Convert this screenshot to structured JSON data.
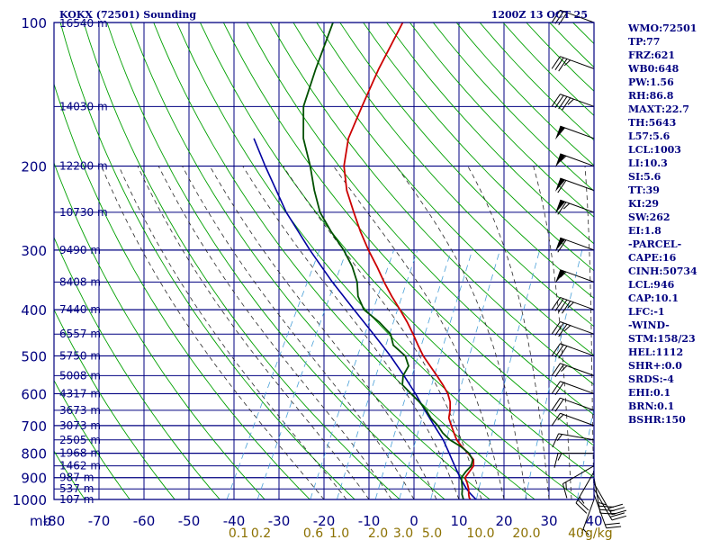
{
  "header": {
    "station": "KOKX (72501) Sounding",
    "time": "1200Z 13 OCT 25"
  },
  "chart_data": {
    "type": "skew-t",
    "title": "KOKX (72501) Sounding",
    "valid_time": "1200Z 13 OCT 25",
    "pressure_unit": "mb",
    "pressure_levels": [
      100,
      200,
      300,
      400,
      500,
      600,
      700,
      800,
      900,
      1000
    ],
    "pressure_labels": [
      "100",
      "200",
      "300",
      "400",
      "500",
      "600",
      "700",
      "800",
      "900",
      "1000"
    ],
    "pressure_unit_label": "mb",
    "temperature_ticks": [
      -80,
      -70,
      -60,
      -50,
      -40,
      -30,
      -20,
      -10,
      0,
      10,
      20,
      30,
      40
    ],
    "temperature_labels": [
      "-80",
      "-70",
      "-60",
      "-50",
      "-40",
      "-30",
      "-20",
      "-10",
      "0",
      "10",
      "20",
      "30",
      "40"
    ],
    "height_levels": [
      {
        "p": 107,
        "label": "16540 m"
      },
      {
        "p": 150,
        "label": "14030 m"
      },
      {
        "p": 200,
        "label": "12200 m"
      },
      {
        "p": 250,
        "label": "10730 m"
      },
      {
        "p": 300,
        "label": "9490 m"
      },
      {
        "p": 350,
        "label": "8408 m"
      },
      {
        "p": 400,
        "label": "7440 m"
      },
      {
        "p": 450,
        "label": "6557 m"
      },
      {
        "p": 500,
        "label": "5750 m"
      },
      {
        "p": 550,
        "label": "5008 m"
      },
      {
        "p": 600,
        "label": "4317 m"
      },
      {
        "p": 650,
        "label": "3673 m"
      },
      {
        "p": 700,
        "label": "3073 m"
      },
      {
        "p": 750,
        "label": "2505 m"
      },
      {
        "p": 800,
        "label": "1968 m"
      },
      {
        "p": 850,
        "label": "1462 m"
      },
      {
        "p": 900,
        "label": "987 m"
      },
      {
        "p": 950,
        "label": "537 m"
      },
      {
        "p": 1000,
        "label": "107 m"
      }
    ],
    "mixing_ratio_labels": [
      {
        "w": 0.1,
        "label": "0.1"
      },
      {
        "w": 0.2,
        "label": "0.2"
      },
      {
        "w": 0.6,
        "label": "0.6"
      },
      {
        "w": 1.0,
        "label": "1.0"
      },
      {
        "w": 2.0,
        "label": "2.0"
      },
      {
        "w": 3.0,
        "label": "3.0"
      },
      {
        "w": 5.0,
        "label": "5.0"
      },
      {
        "w": 10.0,
        "label": "10.0"
      },
      {
        "w": 20.0,
        "label": "20.0"
      },
      {
        "w": 40.0,
        "label": "40"
      }
    ],
    "mixing_ratio_unit": "g/kg",
    "temperature_profile": [
      {
        "p": 1000,
        "t": 12.5
      },
      {
        "p": 990,
        "t": 12.0
      },
      {
        "p": 975,
        "t": 11.5
      },
      {
        "p": 950,
        "t": 10.8
      },
      {
        "p": 925,
        "t": 9.8
      },
      {
        "p": 900,
        "t": 8.6
      },
      {
        "p": 875,
        "t": 8.8
      },
      {
        "p": 850,
        "t": 9.0
      },
      {
        "p": 825,
        "t": 8.2
      },
      {
        "p": 800,
        "t": 6.2
      },
      {
        "p": 775,
        "t": 4.0
      },
      {
        "p": 750,
        "t": 2.0
      },
      {
        "p": 725,
        "t": 0.5
      },
      {
        "p": 700,
        "t": -1.0
      },
      {
        "p": 675,
        "t": -2.5
      },
      {
        "p": 650,
        "t": -3.2
      },
      {
        "p": 625,
        "t": -4.2
      },
      {
        "p": 600,
        "t": -5.8
      },
      {
        "p": 575,
        "t": -8.0
      },
      {
        "p": 550,
        "t": -10.5
      },
      {
        "p": 525,
        "t": -13.2
      },
      {
        "p": 500,
        "t": -16.0
      },
      {
        "p": 475,
        "t": -18.5
      },
      {
        "p": 450,
        "t": -21.0
      },
      {
        "p": 425,
        "t": -23.8
      },
      {
        "p": 400,
        "t": -27.0
      },
      {
        "p": 375,
        "t": -30.5
      },
      {
        "p": 350,
        "t": -34.0
      },
      {
        "p": 325,
        "t": -37.5
      },
      {
        "p": 300,
        "t": -41.5
      },
      {
        "p": 275,
        "t": -45.5
      },
      {
        "p": 250,
        "t": -49.5
      },
      {
        "p": 225,
        "t": -53.8
      },
      {
        "p": 200,
        "t": -57.5
      },
      {
        "p": 175,
        "t": -60.0
      },
      {
        "p": 150,
        "t": -61.0
      },
      {
        "p": 125,
        "t": -62.0
      },
      {
        "p": 100,
        "t": -62.5
      }
    ],
    "dewpoint_profile": [
      {
        "p": 1000,
        "t": 11.0
      },
      {
        "p": 990,
        "t": 10.6
      },
      {
        "p": 975,
        "t": 10.0
      },
      {
        "p": 950,
        "t": 9.4
      },
      {
        "p": 925,
        "t": 8.6
      },
      {
        "p": 900,
        "t": 7.8
      },
      {
        "p": 875,
        "t": 8.0
      },
      {
        "p": 850,
        "t": 8.5
      },
      {
        "p": 825,
        "t": 8.0
      },
      {
        "p": 800,
        "t": 6.4
      },
      {
        "p": 775,
        "t": 3.8
      },
      {
        "p": 750,
        "t": 0.5
      },
      {
        "p": 725,
        "t": -2.0
      },
      {
        "p": 700,
        "t": -4.0
      },
      {
        "p": 675,
        "t": -6.5
      },
      {
        "p": 650,
        "t": -8.5
      },
      {
        "p": 625,
        "t": -11.0
      },
      {
        "p": 600,
        "t": -14.0
      },
      {
        "p": 575,
        "t": -17.0
      },
      {
        "p": 550,
        "t": -18.0
      },
      {
        "p": 525,
        "t": -18.0
      },
      {
        "p": 500,
        "t": -20.0
      },
      {
        "p": 475,
        "t": -24.0
      },
      {
        "p": 450,
        "t": -26.0
      },
      {
        "p": 425,
        "t": -30.0
      },
      {
        "p": 400,
        "t": -35.0
      },
      {
        "p": 375,
        "t": -38.0
      },
      {
        "p": 350,
        "t": -40.0
      },
      {
        "p": 325,
        "t": -43.0
      },
      {
        "p": 300,
        "t": -47.0
      },
      {
        "p": 275,
        "t": -52.0
      },
      {
        "p": 250,
        "t": -57.0
      },
      {
        "p": 225,
        "t": -61.0
      },
      {
        "p": 200,
        "t": -65.0
      },
      {
        "p": 175,
        "t": -70.0
      },
      {
        "p": 150,
        "t": -74.0
      },
      {
        "p": 125,
        "t": -76.0
      },
      {
        "p": 100,
        "t": -78.0
      }
    ],
    "parcel_profile": [
      {
        "p": 1000,
        "t": 13.8
      },
      {
        "p": 975,
        "t": 12.0
      },
      {
        "p": 946,
        "t": 10.1
      },
      {
        "p": 900,
        "t": 7.5
      },
      {
        "p": 850,
        "t": 4.8
      },
      {
        "p": 800,
        "t": 2.0
      },
      {
        "p": 750,
        "t": -1.0
      },
      {
        "p": 700,
        "t": -4.8
      },
      {
        "p": 650,
        "t": -8.8
      },
      {
        "p": 600,
        "t": -13.0
      },
      {
        "p": 550,
        "t": -17.8
      },
      {
        "p": 500,
        "t": -23.3
      },
      {
        "p": 450,
        "t": -29.8
      },
      {
        "p": 400,
        "t": -37.2
      },
      {
        "p": 350,
        "t": -45.5
      },
      {
        "p": 300,
        "t": -54.5
      },
      {
        "p": 250,
        "t": -64.5
      },
      {
        "p": 200,
        "t": -75.0
      },
      {
        "p": 175,
        "t": -81.0
      }
    ],
    "wind_profile": [
      {
        "p": 1000,
        "dir": 200,
        "spd": 5
      },
      {
        "p": 975,
        "dir": 160,
        "spd": 20
      },
      {
        "p": 950,
        "dir": 150,
        "spd": 25
      },
      {
        "p": 925,
        "dir": 150,
        "spd": 30
      },
      {
        "p": 900,
        "dir": 170,
        "spd": 35
      },
      {
        "p": 875,
        "dir": 210,
        "spd": 25
      },
      {
        "p": 850,
        "dir": 240,
        "spd": 15
      },
      {
        "p": 800,
        "dir": 270,
        "spd": 15
      },
      {
        "p": 750,
        "dir": 280,
        "spd": 15
      },
      {
        "p": 700,
        "dir": 290,
        "spd": 15
      },
      {
        "p": 650,
        "dir": 290,
        "spd": 20
      },
      {
        "p": 600,
        "dir": 290,
        "spd": 20
      },
      {
        "p": 550,
        "dir": 290,
        "spd": 25
      },
      {
        "p": 500,
        "dir": 290,
        "spd": 30
      },
      {
        "p": 450,
        "dir": 290,
        "spd": 35
      },
      {
        "p": 400,
        "dir": 290,
        "spd": 45
      },
      {
        "p": 350,
        "dir": 290,
        "spd": 55
      },
      {
        "p": 300,
        "dir": 290,
        "spd": 60
      },
      {
        "p": 250,
        "dir": 290,
        "spd": 65
      },
      {
        "p": 225,
        "dir": 290,
        "spd": 60
      },
      {
        "p": 200,
        "dir": 290,
        "spd": 55
      },
      {
        "p": 175,
        "dir": 290,
        "spd": 50
      },
      {
        "p": 150,
        "dir": 290,
        "spd": 45
      },
      {
        "p": 125,
        "dir": 290,
        "spd": 35
      },
      {
        "p": 100,
        "dir": 290,
        "spd": 30
      }
    ],
    "indices": [
      "WMO:72501",
      "TP:77",
      "FRZ:621",
      "WB0:648",
      "PW:1.56",
      "RH:86.8",
      "MAXT:22.7",
      "TH:5643",
      "L57:5.6",
      "LCL:1003",
      "LI:10.3",
      "SI:5.6",
      "TT:39",
      "KI:29",
      "SW:262",
      "EI:1.8",
      "-PARCEL-",
      "CAPE:16",
      "CINH:50734",
      "LCL:946",
      "CAP:10.1",
      "LFC:-1",
      "-WIND-",
      "STM:158/23",
      "HEL:1112",
      "SHR+:0.0",
      "SRDS:-4",
      "EHI:0.1",
      "BRN:0.1",
      "BSHR:150"
    ]
  },
  "colors": {
    "grid": "#000080",
    "dry_adiabat": "#00a000",
    "moist_adiabat": "#2a2a2a",
    "mixing_ratio": "#4aa0d8",
    "temperature": "#cc0000",
    "dewpoint": "#005000",
    "parcel": "#0000a0",
    "mixing_label": "#8b7000",
    "wind": "#000000"
  }
}
